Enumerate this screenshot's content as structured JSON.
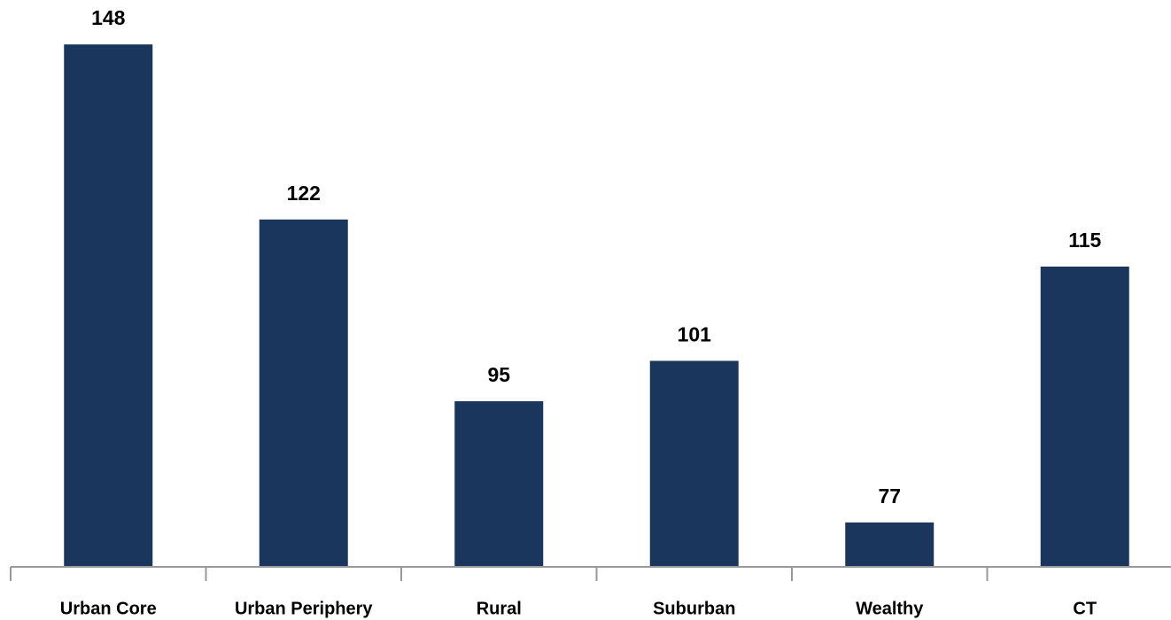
{
  "chart_data": {
    "type": "bar",
    "categories": [
      "Urban Core",
      "Urban Periphery",
      "Rural",
      "Suburban",
      "Wealthy",
      "CT"
    ],
    "values": [
      148,
      122,
      95,
      101,
      77,
      115
    ],
    "color": "#1b365d",
    "ylim": [
      70.4,
      154.6
    ]
  }
}
